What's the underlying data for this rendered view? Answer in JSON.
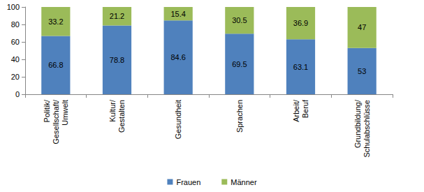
{
  "chart_data": {
    "type": "bar",
    "stacked": true,
    "data_labels": true,
    "grid": false,
    "legend": "bottom",
    "categories": [
      "Politik/ Gesellschaft/ Umwelt",
      "Kultur/ Gestalten",
      "Gesundheit",
      "Sprachen",
      "Arbeit/ Beruf",
      "Grundbildung/ Schulabschlüsse"
    ],
    "series": [
      {
        "name": "Frauen",
        "color": "#4f81bd",
        "values": [
          66.8,
          78.8,
          84.6,
          69.5,
          63.1,
          53
        ]
      },
      {
        "name": "Männer",
        "color": "#9bbb59",
        "values": [
          33.2,
          21.2,
          15.4,
          30.5,
          36.9,
          47
        ]
      }
    ],
    "ylim": [
      0,
      100
    ],
    "yticks": [
      0,
      20,
      40,
      60,
      80,
      100
    ]
  }
}
